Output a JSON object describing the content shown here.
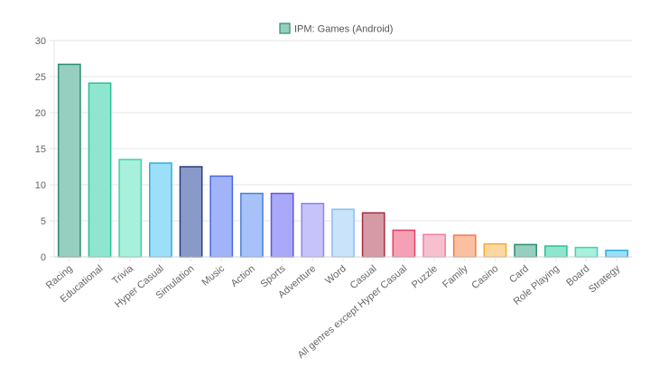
{
  "chart_data": {
    "type": "bar",
    "title": "",
    "xlabel": "",
    "ylabel": "",
    "ylim": [
      0,
      30
    ],
    "yticks": [
      0,
      5,
      10,
      15,
      20,
      25,
      30
    ],
    "grid": true,
    "legend_position": "top",
    "categories": [
      "Racing",
      "Educational",
      "Trivia",
      "Hyper Casual",
      "Simulation",
      "Music",
      "Action",
      "Sports",
      "Adventure",
      "Word",
      "Casual",
      "All genres except Hyper Casual",
      "Puzzle",
      "Family",
      "Casino",
      "Card",
      "Role Playing",
      "Board",
      "Strategy"
    ],
    "series": [
      {
        "name": "IPM: Games (Android)",
        "values": [
          26.7,
          24.1,
          13.5,
          13.0,
          12.5,
          11.2,
          8.8,
          8.8,
          7.4,
          6.6,
          6.1,
          3.7,
          3.1,
          3.0,
          1.8,
          1.7,
          1.5,
          1.3,
          0.9
        ]
      }
    ],
    "bar_colors": [
      {
        "fill": "#96cfc0",
        "stroke": "#2e8b6e"
      },
      {
        "fill": "#8ee6cf",
        "stroke": "#2bbf96"
      },
      {
        "fill": "#a6f0dc",
        "stroke": "#3fd4a8"
      },
      {
        "fill": "#9ddff8",
        "stroke": "#29aee0"
      },
      {
        "fill": "#8a9ac8",
        "stroke": "#2a3c80"
      },
      {
        "fill": "#a2b4f8",
        "stroke": "#4a66e0"
      },
      {
        "fill": "#a7c2f8",
        "stroke": "#4b7fe0"
      },
      {
        "fill": "#aaa8f8",
        "stroke": "#5e58e0"
      },
      {
        "fill": "#c6c2fa",
        "stroke": "#8d86f0"
      },
      {
        "fill": "#c9e3fb",
        "stroke": "#8dbff0"
      },
      {
        "fill": "#d59aa6",
        "stroke": "#a32c44"
      },
      {
        "fill": "#f5a0b4",
        "stroke": "#e24468"
      },
      {
        "fill": "#f8c0cf",
        "stroke": "#f07ea0"
      },
      {
        "fill": "#fbbfa2",
        "stroke": "#f57c40"
      },
      {
        "fill": "#fcd8a0",
        "stroke": "#f5ab36"
      },
      {
        "fill": "#96cfc0",
        "stroke": "#2e8b6e"
      },
      {
        "fill": "#8ee6cf",
        "stroke": "#2bbf96"
      },
      {
        "fill": "#a6f0dc",
        "stroke": "#3fd4a8"
      },
      {
        "fill": "#9ddff8",
        "stroke": "#29aee0"
      }
    ],
    "legend_color": {
      "fill": "#96cfc0",
      "stroke": "#2e8b6e"
    },
    "grid_color": "#e6e6e6",
    "tick_color": "#666666"
  }
}
